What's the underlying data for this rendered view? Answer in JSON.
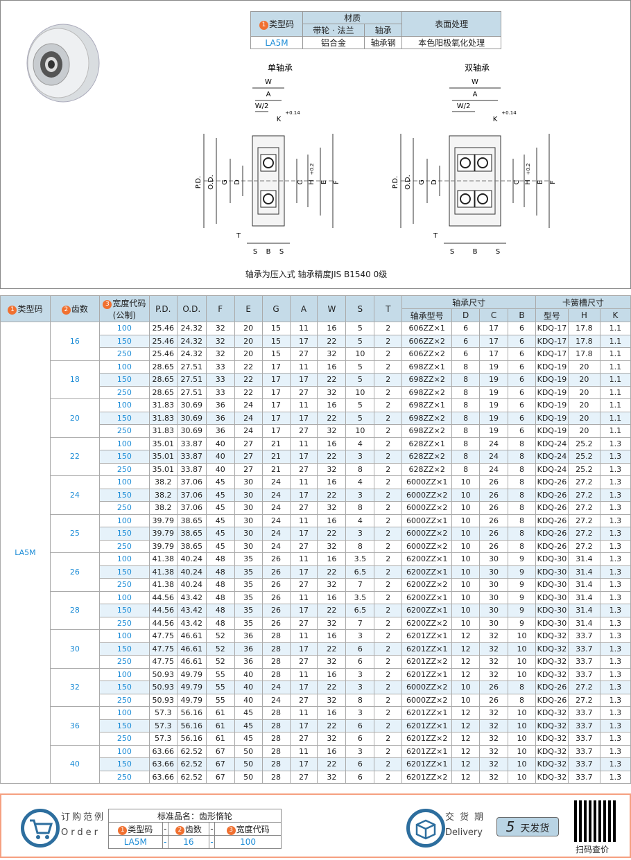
{
  "material_table": {
    "headers": {
      "type_code": "类型码",
      "material": "材质",
      "pulley_flange": "带轮 · 法兰",
      "bearing": "轴承",
      "surface": "表面处理"
    },
    "row": {
      "type_code": "LA5M",
      "pulley_flange": "铝合金",
      "bearing": "轴承钢",
      "surface": "本色阳极氧化处理"
    }
  },
  "diagrams": {
    "single_title": "单轴承",
    "double_title": "双轴承",
    "labels": {
      "W": "W",
      "A": "A",
      "W2": "W/2",
      "K": "K",
      "K_tol": "+0.14",
      "K_tol0": "0",
      "PD": "P.D.",
      "OD": "O.D.",
      "G": "G",
      "D": "D",
      "C": "C",
      "H": "H",
      "H_tol": "+0.2",
      "H_tol0": "0",
      "E": "E",
      "F": "F",
      "T": "T",
      "S": "S",
      "B": "B"
    },
    "caption": "轴承为压入式 轴承精度JIS B1540 0级"
  },
  "spec_table": {
    "headers": {
      "type_code": "类型码",
      "teeth": "齿数",
      "width_code": "宽度代码",
      "width_unit": "(公制)",
      "PD": "P.D.",
      "OD": "O.D.",
      "F": "F",
      "E": "E",
      "G": "G",
      "A": "A",
      "W": "W",
      "S": "S",
      "T": "T",
      "bearing_dims": "轴承尺寸",
      "bearing_model": "轴承型号",
      "D": "D",
      "C": "C",
      "B": "B",
      "groove_dims": "卡簧槽尺寸",
      "groove_model": "型号",
      "H": "H",
      "K": "K"
    },
    "type_code": "LA5M",
    "groups": [
      {
        "teeth": "16",
        "rows": [
          [
            "100",
            "25.46",
            "24.32",
            "32",
            "20",
            "15",
            "11",
            "16",
            "5",
            "2",
            "606ZZ×1",
            "6",
            "17",
            "6",
            "KDQ-17",
            "17.8",
            "1.1"
          ],
          [
            "150",
            "25.46",
            "24.32",
            "32",
            "20",
            "15",
            "17",
            "22",
            "5",
            "2",
            "606ZZ×2",
            "6",
            "17",
            "6",
            "KDQ-17",
            "17.8",
            "1.1"
          ],
          [
            "250",
            "25.46",
            "24.32",
            "32",
            "20",
            "15",
            "27",
            "32",
            "10",
            "2",
            "606ZZ×2",
            "6",
            "17",
            "6",
            "KDQ-17",
            "17.8",
            "1.1"
          ]
        ]
      },
      {
        "teeth": "18",
        "rows": [
          [
            "100",
            "28.65",
            "27.51",
            "33",
            "22",
            "17",
            "11",
            "16",
            "5",
            "2",
            "698ZZ×1",
            "8",
            "19",
            "6",
            "KDQ-19",
            "20",
            "1.1"
          ],
          [
            "150",
            "28.65",
            "27.51",
            "33",
            "22",
            "17",
            "17",
            "22",
            "5",
            "2",
            "698ZZ×2",
            "8",
            "19",
            "6",
            "KDQ-19",
            "20",
            "1.1"
          ],
          [
            "250",
            "28.65",
            "27.51",
            "33",
            "22",
            "17",
            "27",
            "32",
            "10",
            "2",
            "698ZZ×2",
            "8",
            "19",
            "6",
            "KDQ-19",
            "20",
            "1.1"
          ]
        ]
      },
      {
        "teeth": "20",
        "rows": [
          [
            "100",
            "31.83",
            "30.69",
            "36",
            "24",
            "17",
            "11",
            "16",
            "5",
            "2",
            "698ZZ×1",
            "8",
            "19",
            "6",
            "KDQ-19",
            "20",
            "1.1"
          ],
          [
            "150",
            "31.83",
            "30.69",
            "36",
            "24",
            "17",
            "17",
            "22",
            "5",
            "2",
            "698ZZ×2",
            "8",
            "19",
            "6",
            "KDQ-19",
            "20",
            "1.1"
          ],
          [
            "250",
            "31.83",
            "30.69",
            "36",
            "24",
            "17",
            "27",
            "32",
            "10",
            "2",
            "698ZZ×2",
            "8",
            "19",
            "6",
            "KDQ-19",
            "20",
            "1.1"
          ]
        ]
      },
      {
        "teeth": "22",
        "rows": [
          [
            "100",
            "35.01",
            "33.87",
            "40",
            "27",
            "21",
            "11",
            "16",
            "4",
            "2",
            "628ZZ×1",
            "8",
            "24",
            "8",
            "KDQ-24",
            "25.2",
            "1.3"
          ],
          [
            "150",
            "35.01",
            "33.87",
            "40",
            "27",
            "21",
            "17",
            "22",
            "3",
            "2",
            "628ZZ×2",
            "8",
            "24",
            "8",
            "KDQ-24",
            "25.2",
            "1.3"
          ],
          [
            "250",
            "35.01",
            "33.87",
            "40",
            "27",
            "21",
            "27",
            "32",
            "8",
            "2",
            "628ZZ×2",
            "8",
            "24",
            "8",
            "KDQ-24",
            "25.2",
            "1.3"
          ]
        ]
      },
      {
        "teeth": "24",
        "rows": [
          [
            "100",
            "38.2",
            "37.06",
            "45",
            "30",
            "24",
            "11",
            "16",
            "4",
            "2",
            "6000ZZ×1",
            "10",
            "26",
            "8",
            "KDQ-26",
            "27.2",
            "1.3"
          ],
          [
            "150",
            "38.2",
            "37.06",
            "45",
            "30",
            "24",
            "17",
            "22",
            "3",
            "2",
            "6000ZZ×2",
            "10",
            "26",
            "8",
            "KDQ-26",
            "27.2",
            "1.3"
          ],
          [
            "250",
            "38.2",
            "37.06",
            "45",
            "30",
            "24",
            "27",
            "32",
            "8",
            "2",
            "6000ZZ×2",
            "10",
            "26",
            "8",
            "KDQ-26",
            "27.2",
            "1.3"
          ]
        ]
      },
      {
        "teeth": "25",
        "rows": [
          [
            "100",
            "39.79",
            "38.65",
            "45",
            "30",
            "24",
            "11",
            "16",
            "4",
            "2",
            "6000ZZ×1",
            "10",
            "26",
            "8",
            "KDQ-26",
            "27.2",
            "1.3"
          ],
          [
            "150",
            "39.79",
            "38.65",
            "45",
            "30",
            "24",
            "17",
            "22",
            "3",
            "2",
            "6000ZZ×2",
            "10",
            "26",
            "8",
            "KDQ-26",
            "27.2",
            "1.3"
          ],
          [
            "250",
            "39.79",
            "38.65",
            "45",
            "30",
            "24",
            "27",
            "32",
            "8",
            "2",
            "6000ZZ×2",
            "10",
            "26",
            "8",
            "KDQ-26",
            "27.2",
            "1.3"
          ]
        ]
      },
      {
        "teeth": "26",
        "rows": [
          [
            "100",
            "41.38",
            "40.24",
            "48",
            "35",
            "26",
            "11",
            "16",
            "3.5",
            "2",
            "6200ZZ×1",
            "10",
            "30",
            "9",
            "KDQ-30",
            "31.4",
            "1.3"
          ],
          [
            "150",
            "41.38",
            "40.24",
            "48",
            "35",
            "26",
            "17",
            "22",
            "6.5",
            "2",
            "6200ZZ×1",
            "10",
            "30",
            "9",
            "KDQ-30",
            "31.4",
            "1.3"
          ],
          [
            "250",
            "41.38",
            "40.24",
            "48",
            "35",
            "26",
            "27",
            "32",
            "7",
            "2",
            "6200ZZ×2",
            "10",
            "30",
            "9",
            "KDQ-30",
            "31.4",
            "1.3"
          ]
        ]
      },
      {
        "teeth": "28",
        "rows": [
          [
            "100",
            "44.56",
            "43.42",
            "48",
            "35",
            "26",
            "11",
            "16",
            "3.5",
            "2",
            "6200ZZ×1",
            "10",
            "30",
            "9",
            "KDQ-30",
            "31.4",
            "1.3"
          ],
          [
            "150",
            "44.56",
            "43.42",
            "48",
            "35",
            "26",
            "17",
            "22",
            "6.5",
            "2",
            "6200ZZ×1",
            "10",
            "30",
            "9",
            "KDQ-30",
            "31.4",
            "1.3"
          ],
          [
            "250",
            "44.56",
            "43.42",
            "48",
            "35",
            "26",
            "27",
            "32",
            "7",
            "2",
            "6200ZZ×2",
            "10",
            "30",
            "9",
            "KDQ-30",
            "31.4",
            "1.3"
          ]
        ]
      },
      {
        "teeth": "30",
        "rows": [
          [
            "100",
            "47.75",
            "46.61",
            "52",
            "36",
            "28",
            "11",
            "16",
            "3",
            "2",
            "6201ZZ×1",
            "12",
            "32",
            "10",
            "KDQ-32",
            "33.7",
            "1.3"
          ],
          [
            "150",
            "47.75",
            "46.61",
            "52",
            "36",
            "28",
            "17",
            "22",
            "6",
            "2",
            "6201ZZ×1",
            "12",
            "32",
            "10",
            "KDQ-32",
            "33.7",
            "1.3"
          ],
          [
            "250",
            "47.75",
            "46.61",
            "52",
            "36",
            "28",
            "27",
            "32",
            "6",
            "2",
            "6201ZZ×2",
            "12",
            "32",
            "10",
            "KDQ-32",
            "33.7",
            "1.3"
          ]
        ]
      },
      {
        "teeth": "32",
        "rows": [
          [
            "100",
            "50.93",
            "49.79",
            "55",
            "40",
            "28",
            "11",
            "16",
            "3",
            "2",
            "6201ZZ×1",
            "12",
            "32",
            "10",
            "KDQ-32",
            "33.7",
            "1.3"
          ],
          [
            "150",
            "50.93",
            "49.79",
            "55",
            "40",
            "24",
            "17",
            "22",
            "3",
            "2",
            "6000ZZ×2",
            "10",
            "26",
            "8",
            "KDQ-26",
            "27.2",
            "1.3"
          ],
          [
            "250",
            "50.93",
            "49.79",
            "55",
            "40",
            "24",
            "27",
            "32",
            "8",
            "2",
            "6000ZZ×2",
            "10",
            "26",
            "8",
            "KDQ-26",
            "27.2",
            "1.3"
          ]
        ]
      },
      {
        "teeth": "36",
        "rows": [
          [
            "100",
            "57.3",
            "56.16",
            "61",
            "45",
            "28",
            "11",
            "16",
            "3",
            "2",
            "6201ZZ×1",
            "12",
            "32",
            "10",
            "KDQ-32",
            "33.7",
            "1.3"
          ],
          [
            "150",
            "57.3",
            "56.16",
            "61",
            "45",
            "28",
            "17",
            "22",
            "6",
            "2",
            "6201ZZ×1",
            "12",
            "32",
            "10",
            "KDQ-32",
            "33.7",
            "1.3"
          ],
          [
            "250",
            "57.3",
            "56.16",
            "61",
            "45",
            "28",
            "27",
            "32",
            "6",
            "2",
            "6201ZZ×2",
            "12",
            "32",
            "10",
            "KDQ-32",
            "33.7",
            "1.3"
          ]
        ]
      },
      {
        "teeth": "40",
        "rows": [
          [
            "100",
            "63.66",
            "62.52",
            "67",
            "50",
            "28",
            "11",
            "16",
            "3",
            "2",
            "6201ZZ×1",
            "12",
            "32",
            "10",
            "KDQ-32",
            "33.7",
            "1.3"
          ],
          [
            "150",
            "63.66",
            "62.52",
            "67",
            "50",
            "28",
            "17",
            "22",
            "6",
            "2",
            "6201ZZ×1",
            "12",
            "32",
            "10",
            "KDQ-32",
            "33.7",
            "1.3"
          ],
          [
            "250",
            "63.66",
            "62.52",
            "67",
            "50",
            "28",
            "27",
            "32",
            "6",
            "2",
            "6201ZZ×2",
            "12",
            "32",
            "10",
            "KDQ-32",
            "33.7",
            "1.3"
          ]
        ]
      }
    ]
  },
  "footer": {
    "order_label": "订购范例",
    "order_en": "Order",
    "std_name": "标准品名：齿形惰轮",
    "order_headers": [
      "类型码",
      "-",
      "齿数",
      "-",
      "宽度代码"
    ],
    "order_values": [
      "LA5M",
      "-",
      "16",
      "-",
      "100"
    ],
    "delivery_label": "交货期",
    "delivery_en": "Delivery",
    "delivery_days": "5",
    "delivery_text": "天发货",
    "qr_label": "扫码查价"
  },
  "colors": {
    "accent_blue": "#1a8bd6",
    "header_bg": "#c5dbe8",
    "row_alt": "#e6f2fa",
    "badge_orange": "#f07030",
    "footer_border": "#f5a080",
    "icon_blue": "#2d6e9e"
  }
}
